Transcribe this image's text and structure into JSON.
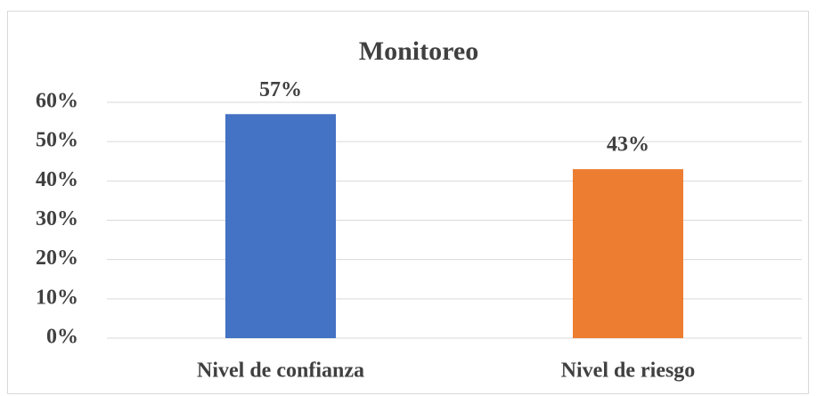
{
  "chart_data": {
    "type": "bar",
    "title": "Monitoreo",
    "categories": [
      "Nivel de confianza",
      "Nivel de riesgo"
    ],
    "values": [
      57,
      43
    ],
    "value_labels": [
      "57%",
      "43%"
    ],
    "colors": [
      "#4472c4",
      "#ed7d31"
    ],
    "ylim": [
      0,
      60
    ],
    "yticks": [
      {
        "value": 0,
        "label": "0%"
      },
      {
        "value": 10,
        "label": "10%"
      },
      {
        "value": 20,
        "label": "20%"
      },
      {
        "value": 30,
        "label": "30%"
      },
      {
        "value": 40,
        "label": "40%"
      },
      {
        "value": 50,
        "label": "50%"
      },
      {
        "value": 60,
        "label": "60%"
      }
    ],
    "grid": true
  }
}
